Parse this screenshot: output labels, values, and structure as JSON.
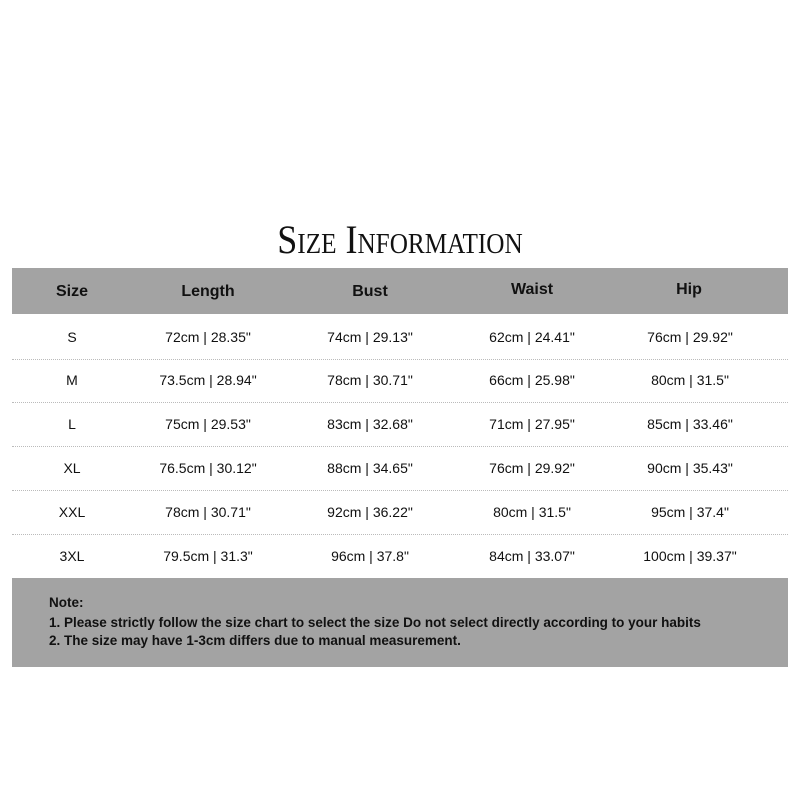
{
  "title": "Size Information",
  "columns": [
    "Size",
    "Length",
    "Bust",
    "Waist",
    "Hip"
  ],
  "rows": [
    [
      "S",
      "72cm | 28.35\"",
      "74cm | 29.13\"",
      "62cm | 24.41\"",
      "76cm | 29.92\""
    ],
    [
      "M",
      "73.5cm | 28.94\"",
      "78cm | 30.71\"",
      "66cm | 25.98\"",
      "80cm | 31.5\""
    ],
    [
      "L",
      "75cm | 29.53\"",
      "83cm | 32.68\"",
      "71cm | 27.95\"",
      "85cm | 33.46\""
    ],
    [
      "XL",
      "76.5cm | 30.12\"",
      "88cm | 34.65\"",
      "76cm | 29.92\"",
      "90cm | 35.43\""
    ],
    [
      "XXL",
      "78cm | 30.71\"",
      "92cm | 36.22\"",
      "80cm | 31.5\"",
      "95cm | 37.4\""
    ],
    [
      "3XL",
      "79.5cm | 31.3\"",
      "96cm | 37.8\"",
      "84cm | 33.07\"",
      "100cm | 39.37\""
    ]
  ],
  "note": {
    "heading": "Note:",
    "lines": [
      "1. Please strictly follow the size chart to select the size Do not select directly according to your habits",
      "2. The size may have 1-3cm differs due to manual measurement."
    ]
  },
  "colors": {
    "header_bg": "#a3a3a3",
    "note_bg": "#a3a3a3"
  }
}
